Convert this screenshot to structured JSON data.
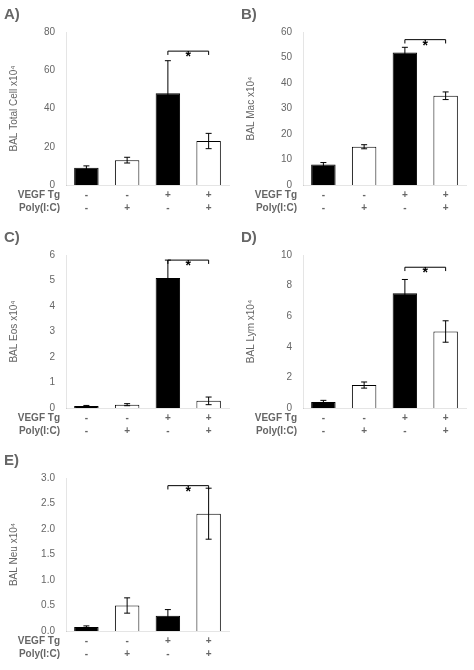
{
  "chart_data": [
    {
      "type": "bar",
      "title": "A)",
      "y_label": "BAL Total Cell x10⁴",
      "categories": [
        [
          "-",
          "-"
        ],
        [
          "-",
          "+"
        ],
        [
          "+",
          "-"
        ],
        [
          "+",
          "+"
        ]
      ],
      "category_rows": [
        "VEGF Tg",
        "Poly(I:C)"
      ],
      "values": [
        9,
        13,
        48,
        23
      ],
      "errors": [
        1.0,
        1.5,
        17,
        4
      ],
      "colors": [
        "black",
        "white",
        "black",
        "white"
      ],
      "ylim": [
        0,
        80
      ],
      "yticks": [
        0,
        20,
        40,
        60,
        80
      ],
      "grid": false,
      "annotations": [
        {
          "text": "*",
          "from": 2,
          "to": 3,
          "y": 70
        }
      ]
    },
    {
      "type": "bar",
      "title": "B)",
      "y_label": "BAL Mac x10⁴",
      "categories": [
        [
          "-",
          "-"
        ],
        [
          "-",
          "+"
        ],
        [
          "+",
          "-"
        ],
        [
          "+",
          "+"
        ]
      ],
      "category_rows": [
        "VEGF Tg",
        "Poly(I:C)"
      ],
      "values": [
        8,
        15,
        52,
        35
      ],
      "errors": [
        0.8,
        0.8,
        2,
        1.5
      ],
      "colors": [
        "black",
        "white",
        "black",
        "white"
      ],
      "ylim": [
        0,
        60
      ],
      "yticks": [
        0,
        10,
        20,
        30,
        40,
        50,
        60
      ],
      "grid": false,
      "annotations": [
        {
          "text": "*",
          "from": 2,
          "to": 3,
          "y": 57
        }
      ]
    },
    {
      "type": "bar",
      "title": "C)",
      "y_label": "BAL Eos x10⁴",
      "categories": [
        [
          "-",
          "-"
        ],
        [
          "-",
          "+"
        ],
        [
          "+",
          "-"
        ],
        [
          "+",
          "+"
        ]
      ],
      "category_rows": [
        "VEGF Tg",
        "Poly(I:C)"
      ],
      "values": [
        0.08,
        0.13,
        5.1,
        0.28
      ],
      "errors": [
        0.02,
        0.04,
        0.7,
        0.15
      ],
      "colors": [
        "black",
        "white",
        "black",
        "white"
      ],
      "ylim": [
        0,
        6
      ],
      "yticks": [
        0,
        1,
        2,
        3,
        4,
        5,
        6
      ],
      "grid": false,
      "annotations": [
        {
          "text": "*",
          "from": 2,
          "to": 3,
          "y": 5.8
        }
      ]
    },
    {
      "type": "bar",
      "title": "D)",
      "y_label": "BAL Lym x10⁴",
      "categories": [
        [
          "-",
          "-"
        ],
        [
          "-",
          "+"
        ],
        [
          "+",
          "-"
        ],
        [
          "+",
          "+"
        ]
      ],
      "category_rows": [
        "VEGF Tg",
        "Poly(I:C)"
      ],
      "values": [
        0.4,
        1.5,
        7.5,
        5.0
      ],
      "errors": [
        0.1,
        0.2,
        0.9,
        0.7
      ],
      "colors": [
        "black",
        "white",
        "black",
        "white"
      ],
      "ylim": [
        0,
        10
      ],
      "yticks": [
        0,
        2,
        4,
        6,
        8,
        10
      ],
      "grid": false,
      "annotations": [
        {
          "text": "*",
          "from": 2,
          "to": 3,
          "y": 9.2
        }
      ]
    },
    {
      "type": "bar",
      "title": "E)",
      "y_label": "BAL Neu x10⁴",
      "categories": [
        [
          "-",
          "-"
        ],
        [
          "-",
          "+"
        ],
        [
          "+",
          "-"
        ],
        [
          "+",
          "+"
        ]
      ],
      "category_rows": [
        "VEGF Tg",
        "Poly(I:C)"
      ],
      "values": [
        0.08,
        0.5,
        0.3,
        2.3
      ],
      "errors": [
        0.02,
        0.15,
        0.12,
        0.5
      ],
      "colors": [
        "black",
        "white",
        "black",
        "white"
      ],
      "ylim": [
        0,
        3.0
      ],
      "yticks": [
        {
          "value": 0,
          "label": "0.0"
        },
        0.5,
        {
          "value": 1,
          "label": "1.0"
        },
        1.5,
        {
          "value": 2,
          "label": "2.0"
        },
        2.5,
        {
          "value": 3,
          "label": "3.0"
        }
      ],
      "grid": false,
      "annotations": [
        {
          "text": "*",
          "from": 2,
          "to": 3,
          "y": 2.85
        }
      ]
    }
  ]
}
